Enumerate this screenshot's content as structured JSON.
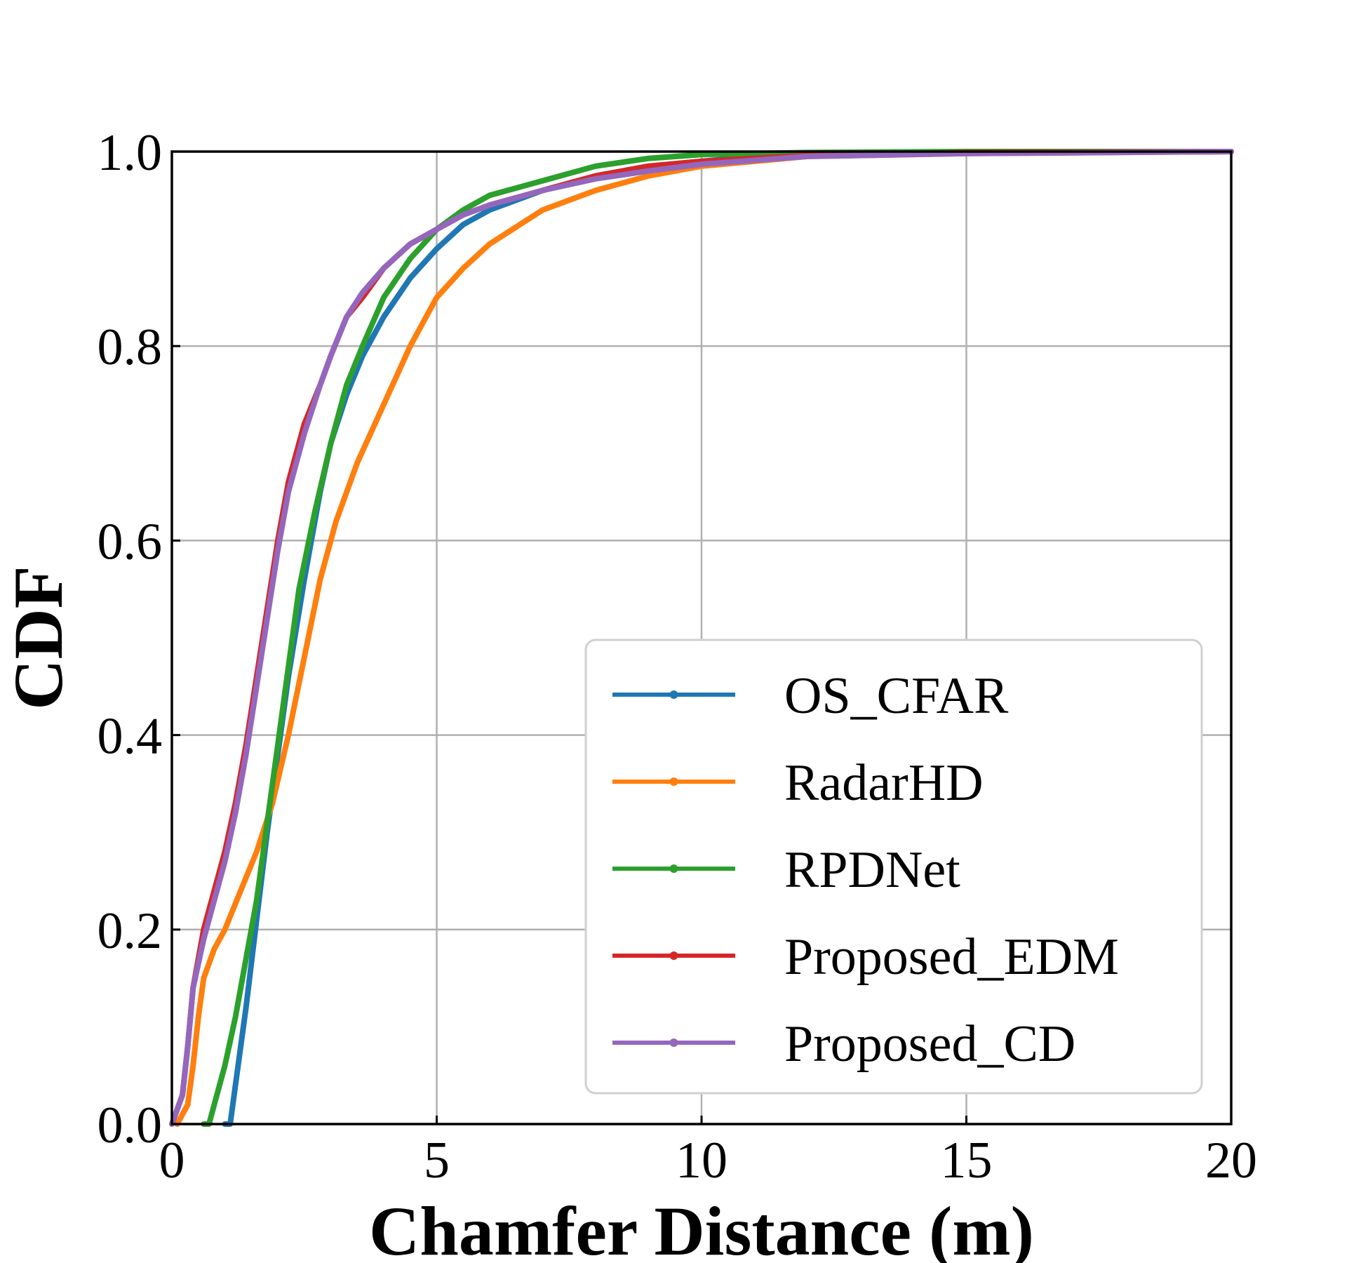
{
  "chart_data": {
    "type": "line",
    "title": "",
    "xlabel": "Chamfer Distance (m)",
    "ylabel": "CDF",
    "xlim": [
      0,
      20
    ],
    "ylim": [
      0,
      1
    ],
    "xticks": [
      0,
      5,
      10,
      15,
      20
    ],
    "xtick_labels": [
      "0",
      "5",
      "10",
      "15",
      "20"
    ],
    "yticks": [
      0.0,
      0.2,
      0.4,
      0.6,
      0.8,
      1.0
    ],
    "ytick_labels": [
      "0.0",
      "0.2",
      "0.4",
      "0.6",
      "0.8",
      "1.0"
    ],
    "grid": true,
    "legend_position": "lower-right",
    "series": [
      {
        "name": "OS_CFAR",
        "color": "#1f77b4",
        "x": [
          1.0,
          1.1,
          1.2,
          1.4,
          1.6,
          1.8,
          2.0,
          2.2,
          2.5,
          2.8,
          3.0,
          3.3,
          3.6,
          4.0,
          4.5,
          5.0,
          5.5,
          6.0,
          7.0,
          8.0,
          9.0,
          10.0,
          11.0,
          12.0,
          15.0,
          20.0
        ],
        "y": [
          0.0,
          0.0,
          0.04,
          0.12,
          0.21,
          0.3,
          0.38,
          0.46,
          0.56,
          0.65,
          0.7,
          0.75,
          0.79,
          0.83,
          0.87,
          0.9,
          0.925,
          0.94,
          0.96,
          0.975,
          0.985,
          0.99,
          0.995,
          0.997,
          0.999,
          1.0
        ]
      },
      {
        "name": "RadarHD",
        "color": "#ff7f0e",
        "x": [
          0.1,
          0.3,
          0.4,
          0.5,
          0.6,
          0.8,
          1.0,
          1.3,
          1.6,
          1.9,
          2.2,
          2.5,
          2.8,
          3.1,
          3.5,
          4.0,
          4.5,
          5.0,
          5.5,
          6.0,
          7.0,
          8.0,
          9.0,
          10.0,
          11.0,
          12.0,
          15.0,
          20.0
        ],
        "y": [
          0.0,
          0.02,
          0.06,
          0.11,
          0.15,
          0.18,
          0.2,
          0.24,
          0.28,
          0.33,
          0.4,
          0.48,
          0.56,
          0.62,
          0.68,
          0.74,
          0.8,
          0.85,
          0.88,
          0.905,
          0.94,
          0.96,
          0.975,
          0.985,
          0.99,
          0.995,
          0.998,
          1.0
        ]
      },
      {
        "name": "RPDNet",
        "color": "#2ca02c",
        "x": [
          0.6,
          0.7,
          0.8,
          1.0,
          1.2,
          1.4,
          1.6,
          1.8,
          2.0,
          2.2,
          2.4,
          2.7,
          3.0,
          3.3,
          3.6,
          4.0,
          4.5,
          5.0,
          5.5,
          6.0,
          7.0,
          8.0,
          9.0,
          10.0,
          12.0,
          15.0,
          20.0
        ],
        "y": [
          0.0,
          0.0,
          0.02,
          0.06,
          0.11,
          0.17,
          0.23,
          0.31,
          0.39,
          0.47,
          0.55,
          0.63,
          0.7,
          0.76,
          0.8,
          0.85,
          0.89,
          0.92,
          0.94,
          0.955,
          0.97,
          0.985,
          0.993,
          0.997,
          0.999,
          1.0,
          1.0
        ]
      },
      {
        "name": "Proposed_EDM",
        "color": "#d62728",
        "x": [
          0.0,
          0.2,
          0.3,
          0.4,
          0.6,
          0.8,
          1.0,
          1.2,
          1.4,
          1.6,
          1.8,
          2.0,
          2.2,
          2.5,
          2.8,
          3.0,
          3.3,
          3.6,
          4.0,
          4.5,
          5.0,
          5.5,
          6.0,
          7.0,
          8.0,
          9.0,
          10.0,
          12.0,
          15.0,
          20.0
        ],
        "y": [
          0.0,
          0.03,
          0.08,
          0.14,
          0.2,
          0.24,
          0.28,
          0.33,
          0.39,
          0.46,
          0.53,
          0.6,
          0.66,
          0.72,
          0.76,
          0.79,
          0.83,
          0.85,
          0.88,
          0.905,
          0.92,
          0.935,
          0.945,
          0.96,
          0.975,
          0.985,
          0.99,
          0.996,
          0.999,
          1.0
        ]
      },
      {
        "name": "Proposed_CD",
        "color": "#9467bd",
        "x": [
          0.0,
          0.2,
          0.3,
          0.4,
          0.6,
          0.8,
          1.0,
          1.2,
          1.4,
          1.6,
          1.8,
          2.0,
          2.2,
          2.5,
          2.8,
          3.0,
          3.3,
          3.6,
          4.0,
          4.5,
          5.0,
          5.5,
          6.0,
          7.0,
          8.0,
          9.0,
          10.0,
          12.0,
          15.0,
          20.0
        ],
        "y": [
          0.0,
          0.03,
          0.08,
          0.14,
          0.19,
          0.23,
          0.27,
          0.32,
          0.38,
          0.45,
          0.52,
          0.59,
          0.65,
          0.71,
          0.76,
          0.79,
          0.83,
          0.855,
          0.88,
          0.905,
          0.92,
          0.935,
          0.945,
          0.96,
          0.972,
          0.98,
          0.987,
          0.995,
          0.998,
          1.0
        ]
      }
    ]
  }
}
